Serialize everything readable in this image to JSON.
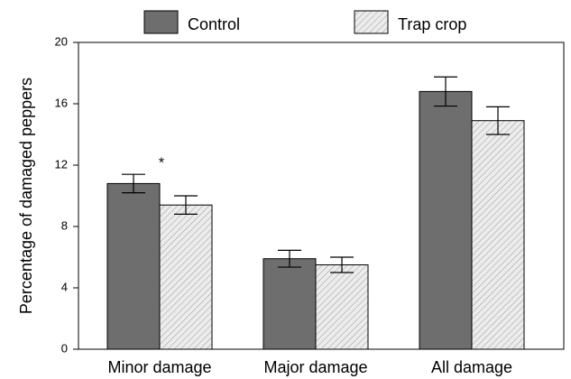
{
  "chart_data": {
    "type": "bar",
    "ylabel": "Percentage of damaged peppers",
    "categories": [
      "Minor damage",
      "Major damage",
      "All damage"
    ],
    "series": [
      {
        "name": "Control",
        "color": "#6e6e6e",
        "hatch": false,
        "values": [
          10.8,
          5.9,
          16.8
        ],
        "errors": [
          0.6,
          0.55,
          0.95
        ]
      },
      {
        "name": "Trap crop",
        "color": "#e4e4e4",
        "hatch": true,
        "values": [
          9.4,
          5.5,
          14.9
        ],
        "errors": [
          0.6,
          0.5,
          0.9
        ]
      }
    ],
    "annotations": [
      "*"
    ],
    "ylim": [
      0,
      20
    ],
    "yticks": [
      0,
      4,
      8,
      12,
      16,
      20
    ],
    "grid": false,
    "legend": "top"
  }
}
